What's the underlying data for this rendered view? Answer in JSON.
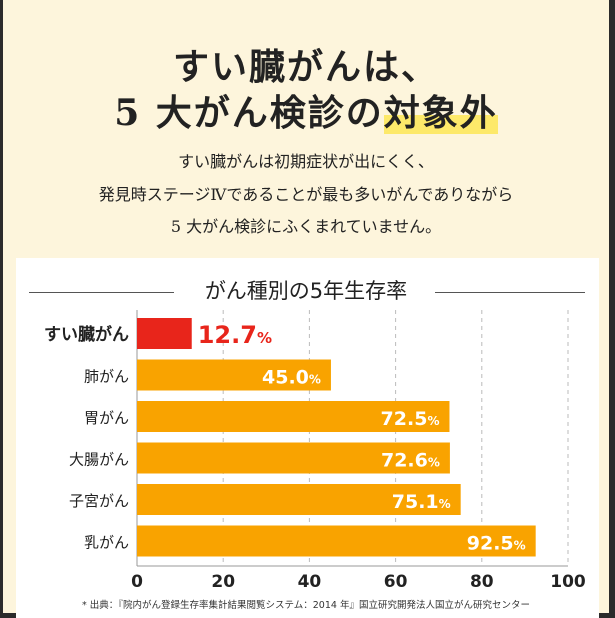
{
  "header": {
    "title_line1": "すい臓がんは、",
    "title_line2_prefix": "5 大がん検診の",
    "title_line2_highlight": "対象外",
    "sub1": "すい臓がんは初期症状が出にくく、",
    "sub2": "発見時ステージⅣであることが最も多いがんでありながら",
    "sub3": "5 大がん検診にふくまれていません。"
  },
  "chart_data": {
    "type": "bar",
    "orientation": "horizontal",
    "title": "がん種別の5年生存率",
    "categories": [
      "すい臓がん",
      "肺がん",
      "胃がん",
      "大腸がん",
      "子宮がん",
      "乳がん"
    ],
    "values": [
      12.7,
      45.0,
      72.5,
      72.6,
      75.1,
      92.5
    ],
    "value_labels": [
      "12.7",
      "45.0",
      "72.5",
      "72.6",
      "75.1",
      "92.5"
    ],
    "unit": "%",
    "xlim": [
      0,
      100
    ],
    "xticks": [
      "0",
      "20",
      "40",
      "60",
      "80",
      "100"
    ],
    "grid": "vertical dashed",
    "colors": {
      "highlight": "#e8251b",
      "default": "#f9a300"
    }
  },
  "source": "* 出典：『院内がん登録生存率集計結果閲覧システム：2014 年』国立研究開発法人国立がん研究センター"
}
